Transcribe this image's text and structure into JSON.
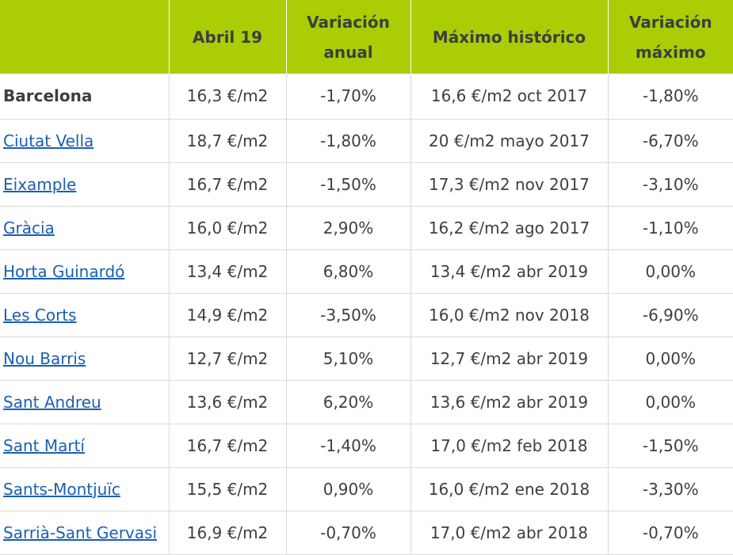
{
  "table": {
    "headers": {
      "area": "",
      "april": "Abril 19",
      "annual_change": "Variación anual",
      "historic_max": "Máximo histórico",
      "max_change": "Variación máximo"
    },
    "rows": [
      {
        "name": "Barcelona",
        "link": false,
        "price": "16,3 €/m2",
        "annual": "-1,70%",
        "max": "16,6 €/m2 oct 2017",
        "max_var": "-1,80%"
      },
      {
        "name": "Ciutat Vella",
        "link": true,
        "price": "18,7 €/m2",
        "annual": "-1,80%",
        "max": "20 €/m2 mayo 2017",
        "max_var": "-6,70%"
      },
      {
        "name": "Eixample",
        "link": true,
        "price": "16,7 €/m2",
        "annual": "-1,50%",
        "max": "17,3 €/m2 nov 2017",
        "max_var": "-3,10%"
      },
      {
        "name": "Gràcia",
        "link": true,
        "price": "16,0 €/m2",
        "annual": "2,90%",
        "max": "16,2 €/m2 ago 2017",
        "max_var": "-1,10%"
      },
      {
        "name": "Horta Guinardó",
        "link": true,
        "price": "13,4 €/m2",
        "annual": "6,80%",
        "max": "13,4 €/m2 abr 2019",
        "max_var": "0,00%"
      },
      {
        "name": "Les Corts",
        "link": true,
        "price": "14,9 €/m2",
        "annual": "-3,50%",
        "max": "16,0 €/m2 nov 2018",
        "max_var": "-6,90%"
      },
      {
        "name": "Nou Barris",
        "link": true,
        "price": "12,7 €/m2",
        "annual": "5,10%",
        "max": "12,7 €/m2 abr 2019",
        "max_var": "0,00%"
      },
      {
        "name": "Sant Andreu",
        "link": true,
        "price": "13,6 €/m2",
        "annual": "6,20%",
        "max": "13,6 €/m2 abr 2019",
        "max_var": "0,00%"
      },
      {
        "name": "Sant Martí",
        "link": true,
        "price": "16,7 €/m2",
        "annual": "-1,40%",
        "max": "17,0 €/m2 feb 2018",
        "max_var": "-1,50%"
      },
      {
        "name": "Sants-Montjuïc",
        "link": true,
        "price": "15,5 €/m2",
        "annual": "0,90%",
        "max": "16,0 €/m2 ene 2018",
        "max_var": "-3,30%"
      },
      {
        "name": "Sarrià-Sant Gervasi",
        "link": true,
        "price": "16,9 €/m2",
        "annual": "-0,70%",
        "max": "17,0 €/m2 abr 2018",
        "max_var": "-0,70%"
      }
    ]
  },
  "colors": {
    "header_bg": "#aacd06",
    "header_text": "#3e3e3e",
    "link": "#1a5fb4",
    "grid": "#d9d9d9"
  }
}
